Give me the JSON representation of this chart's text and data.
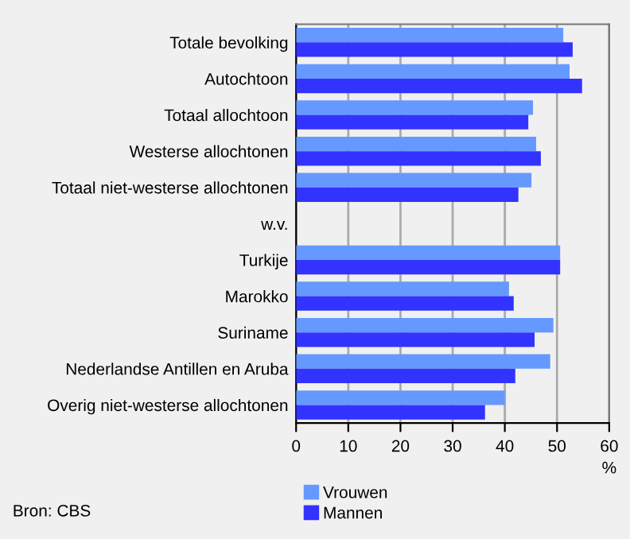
{
  "chart_data": {
    "type": "bar",
    "orientation": "horizontal",
    "categories": [
      "Totale bevolking",
      "Autochtoon",
      "Totaal allochtoon",
      "Westerse allochtonen",
      "Totaal niet-westerse allochtonen",
      "w.v.",
      "Turkije",
      "Marokko",
      "Suriname",
      "Nederlandse Antillen en Aruba",
      "Overig niet-westerse allochtonen"
    ],
    "series": [
      {
        "name": "Vrouwen",
        "color": "#6699ff",
        "values": [
          51.2,
          52.4,
          45.4,
          46.0,
          45.1,
          null,
          50.6,
          40.8,
          49.3,
          48.7,
          40.0
        ]
      },
      {
        "name": "Mannen",
        "color": "#3333ff",
        "values": [
          53.0,
          54.8,
          44.5,
          46.9,
          42.6,
          null,
          50.6,
          41.7,
          45.7,
          42.0,
          36.2
        ]
      }
    ],
    "xlim": [
      0,
      60
    ],
    "xticks": [
      0,
      10,
      20,
      30,
      40,
      50,
      60
    ],
    "xlabel": "%",
    "grid": "x",
    "legend": "bottom",
    "annotations": [
      "Bron: CBS"
    ]
  }
}
